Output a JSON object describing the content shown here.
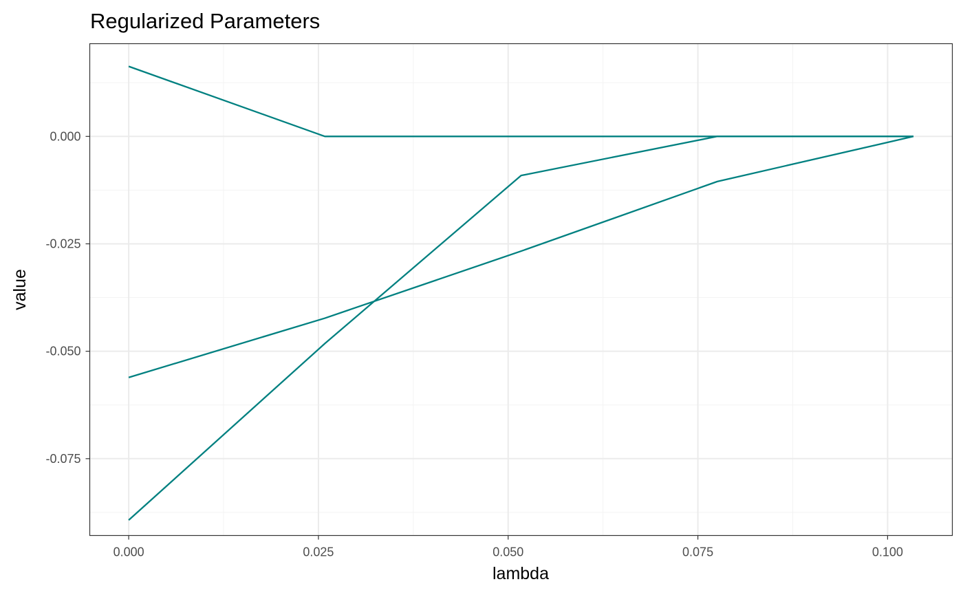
{
  "chart_data": {
    "type": "line",
    "title": "Regularized Parameters",
    "xlabel": "lambda",
    "ylabel": "value",
    "xlim": [
      -0.00513,
      0.10853
    ],
    "ylim": [
      -0.09288,
      0.02158
    ],
    "x_ticks": [
      0.0,
      0.025,
      0.05,
      0.075,
      0.1
    ],
    "x_tick_labels": [
      "0.000",
      "0.025",
      "0.050",
      "0.075",
      "0.100"
    ],
    "x_minor_ticks": [
      0.0125,
      0.0375,
      0.0625,
      0.0875
    ],
    "y_ticks": [
      0.0,
      -0.025,
      -0.05,
      -0.075
    ],
    "y_tick_labels": [
      "0.000",
      "-0.025",
      "-0.050",
      "-0.075"
    ],
    "y_minor_ticks": [
      0.0125,
      -0.0125,
      -0.0375,
      -0.0625,
      -0.0875
    ],
    "grid": true,
    "line_color": "#008080",
    "series": [
      {
        "x": [
          0.0,
          0.02585,
          0.05171,
          0.07756,
          0.10341
        ],
        "y": [
          0.0163,
          0.0,
          0.0,
          0.0,
          0.0
        ]
      },
      {
        "x": [
          0.0,
          0.02585,
          0.05171,
          0.07756,
          0.10341
        ],
        "y": [
          -0.0561,
          -0.0423,
          -0.0267,
          -0.0105,
          0.0
        ]
      },
      {
        "x": [
          0.0,
          0.02585,
          0.05171,
          0.07756,
          0.10341
        ],
        "y": [
          -0.0893,
          -0.0482,
          -0.0091,
          0.0,
          0.0
        ]
      }
    ]
  }
}
